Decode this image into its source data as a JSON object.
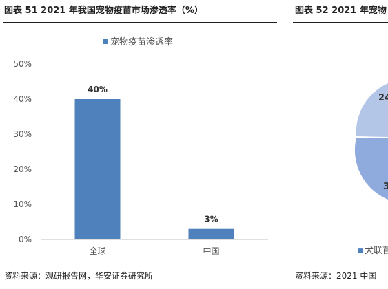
{
  "left_panel": {
    "title": "图表 51 2021 年我国宠物疫苗市场渗透率（%）",
    "source": "资料来源：观研报告网，华安证券研究所"
  },
  "right_panel": {
    "title": "图表 52 2021 年宠物",
    "source": "资料来源：2021 中国",
    "legend_fragment": "犬联苗",
    "pie_labels": [
      "24",
      "3"
    ],
    "colors": {
      "slice_a": "#b4c6e7",
      "slice_b": "#8faadc"
    }
  },
  "chart_data": {
    "type": "bar",
    "categories": [
      "全球",
      "中国"
    ],
    "series": [
      {
        "name": "宠物疫苗渗透率",
        "values": [
          40,
          3
        ],
        "color": "#4f81bd"
      }
    ],
    "data_labels": [
      "40%",
      "3%"
    ],
    "y_ticks": [
      "0%",
      "10%",
      "20%",
      "30%",
      "40%",
      "50%"
    ],
    "ylim": [
      0,
      50
    ],
    "grid": false,
    "legend_position": "top"
  }
}
